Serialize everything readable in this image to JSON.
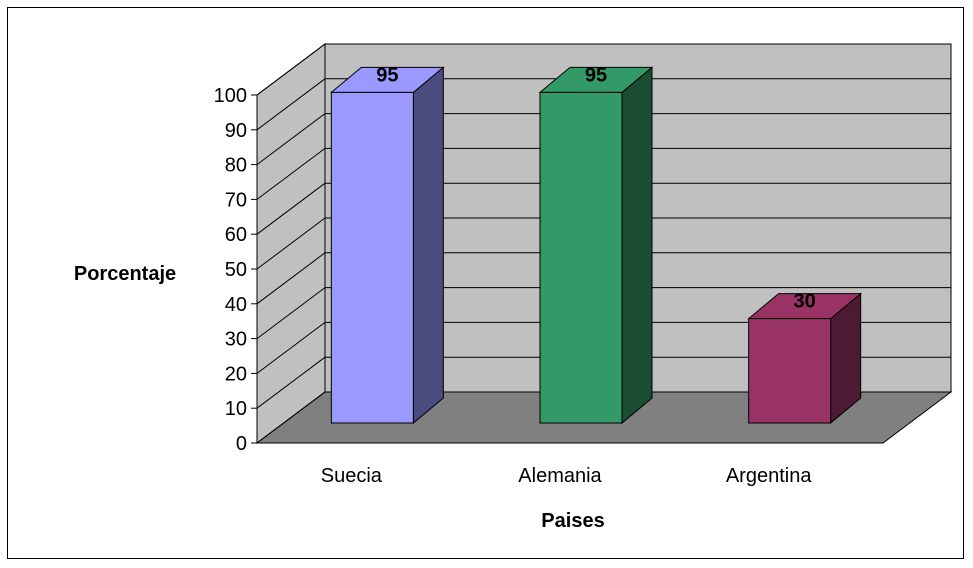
{
  "chart_data": {
    "type": "bar",
    "categories": [
      "Suecia",
      "Alemania",
      "Argentina"
    ],
    "values": [
      95,
      95,
      30
    ],
    "data_labels": [
      "95",
      "95",
      "30"
    ],
    "title": "",
    "xlabel": "Paises",
    "ylabel": "Porcentaje",
    "ylim": [
      0,
      100
    ],
    "yticks": [
      "0",
      "10",
      "20",
      "30",
      "40",
      "50",
      "60",
      "70",
      "80",
      "90",
      "100"
    ],
    "grid": true,
    "legend": "none",
    "style": "3d-column",
    "colors": {
      "bars": [
        "#9999ff",
        "#339966",
        "#993366"
      ],
      "bar_sides": [
        "#4b4b80",
        "#1a4d33",
        "#4d1a33"
      ],
      "back_wall": "#c0c0c0",
      "floor": "#808080"
    }
  }
}
